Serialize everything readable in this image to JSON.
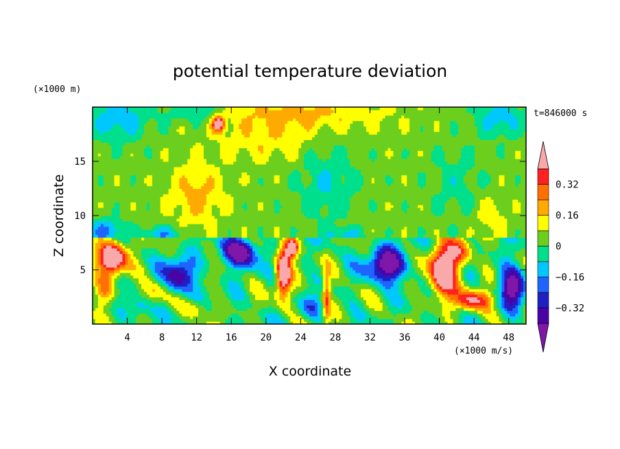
{
  "chart_data": {
    "type": "heatmap",
    "title": "potential temperature deviation",
    "xlabel": "X coordinate",
    "ylabel": "Z coordinate",
    "x_unit": "(×1000 m/s)",
    "y_unit": "(×1000 m)",
    "time_label": "t=846000 s",
    "xlim": [
      0,
      50
    ],
    "ylim": [
      0,
      20
    ],
    "x_ticks": [
      4,
      8,
      12,
      16,
      20,
      24,
      28,
      32,
      36,
      40,
      44,
      48
    ],
    "y_ticks": [
      5,
      10,
      15
    ],
    "colorbar": {
      "levels": [
        -0.4,
        -0.32,
        -0.24,
        -0.16,
        -0.08,
        0,
        0.08,
        0.16,
        0.24,
        0.32,
        0.4
      ],
      "labels": [
        "0.32",
        "0.16",
        "0",
        "−0.16",
        "−0.32"
      ],
      "label_values": [
        0.32,
        0.16,
        0,
        -0.16,
        -0.32
      ],
      "colors": [
        "#7f17a8",
        "#4a04a6",
        "#1f1fc4",
        "#1f64ff",
        "#00c8ff",
        "#00e08c",
        "#6ccf1e",
        "#ffff00",
        "#ffaa00",
        "#ff7000",
        "#ff2020",
        "#f9a9a9"
      ]
    },
    "grid": false
  }
}
